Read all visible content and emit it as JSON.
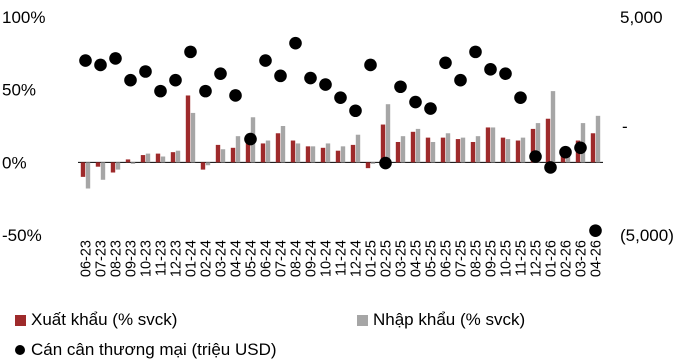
{
  "chart_data": {
    "type": "bar",
    "title": "",
    "categories": [
      "06-23",
      "07-23",
      "08-23",
      "09-23",
      "10-23",
      "11-23",
      "12-23",
      "01-24",
      "02-24",
      "03-24",
      "04-24",
      "05-24",
      "06-24",
      "07-24",
      "08-24",
      "09-24",
      "10-24",
      "11-24",
      "12-24",
      "01-25",
      "02-25",
      "03-25",
      "04-25",
      "05-25",
      "06-25",
      "07-25",
      "08-25",
      "09-25",
      "10-25",
      "11-25",
      "12-25",
      "01-26",
      "02-26",
      "03-26",
      "04-26"
    ],
    "left_axis": {
      "ticks": [
        {
          "value": 100,
          "label": "100%"
        },
        {
          "value": 50,
          "label": "50%"
        },
        {
          "value": 0,
          "label": "0%"
        },
        {
          "value": -50,
          "label": "-50%"
        }
      ],
      "ylim": [
        -50,
        100
      ]
    },
    "right_axis": {
      "ticks": [
        {
          "value": 5000,
          "label": "5,000"
        },
        {
          "value": 0,
          "label": "-"
        },
        {
          "value": -5000,
          "label": "(5,000)"
        }
      ],
      "ylim": [
        -5000,
        5000
      ]
    },
    "series": [
      {
        "name": "Xuất khẩu (% svck)",
        "type": "bar",
        "axis": "left",
        "color": "#9e2a2b",
        "values": [
          -10,
          -3,
          -7,
          2,
          5,
          6,
          7,
          46,
          -5,
          12,
          10,
          15,
          13,
          20,
          15,
          11,
          10,
          8,
          12,
          -4,
          26,
          14,
          21,
          17,
          17,
          16,
          14,
          24,
          17,
          15,
          23,
          30,
          5,
          15,
          20
        ]
      },
      {
        "name": "Nhập khẩu (% svck)",
        "type": "bar",
        "axis": "left",
        "color": "#a6a6a6",
        "values": [
          -18,
          -12,
          -5,
          -1,
          6,
          4,
          8,
          34,
          -2,
          9,
          18,
          31,
          15,
          25,
          13,
          11,
          13,
          11,
          19,
          -1,
          40,
          18,
          23,
          14,
          20,
          17,
          18,
          24,
          16,
          17,
          27,
          49,
          10,
          27,
          32
        ]
      },
      {
        "name": "Cán cân thương mại (triệu USD)",
        "type": "scatter",
        "axis": "right",
        "color": "#000000",
        "values": [
          3000,
          2800,
          3100,
          2100,
          2500,
          1600,
          2100,
          3400,
          1600,
          2400,
          1400,
          -600,
          3000,
          2300,
          3800,
          2200,
          1900,
          1300,
          700,
          2800,
          -1700,
          1800,
          1100,
          800,
          2900,
          2100,
          3400,
          2600,
          2400,
          1300,
          -1400,
          -1900,
          -1200,
          -1000,
          -4800
        ]
      }
    ]
  }
}
